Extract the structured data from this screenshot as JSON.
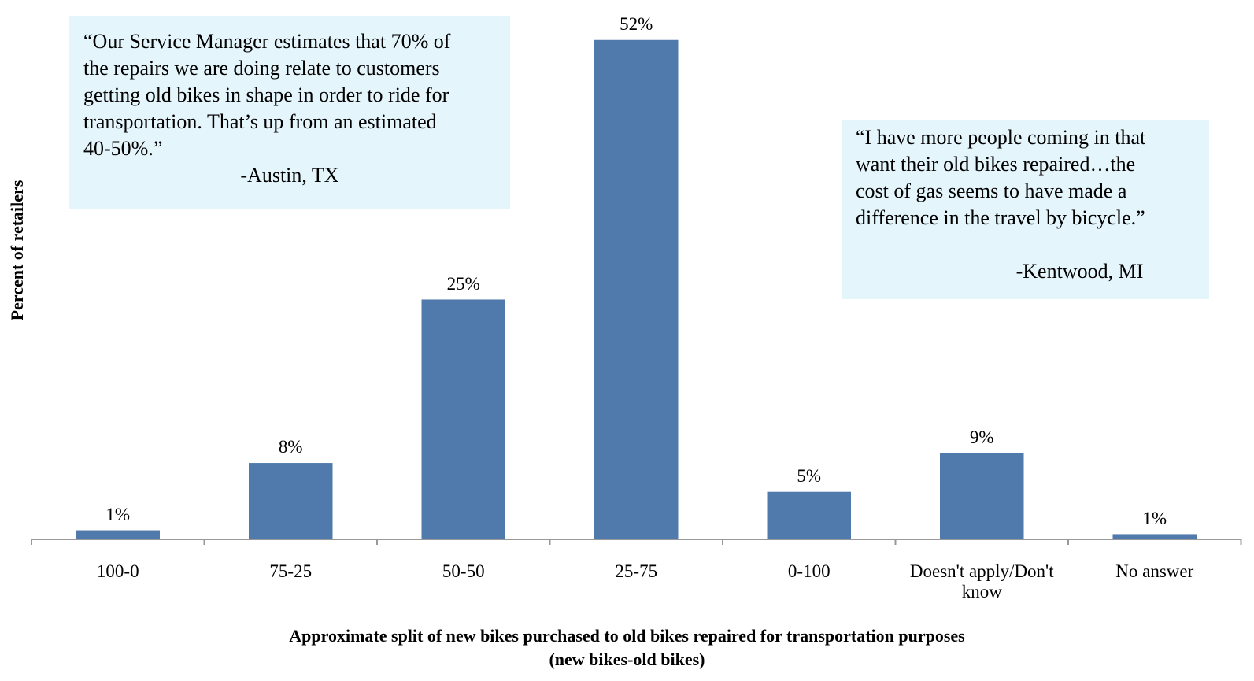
{
  "chart_data": {
    "type": "bar",
    "categories": [
      "100-0",
      "75-25",
      "50-50",
      "25-75",
      "0-100",
      "Doesn't apply/Don't know",
      "No answer"
    ],
    "values": [
      1,
      8,
      25,
      52,
      5,
      9,
      0.6
    ],
    "value_labels": [
      "1%",
      "8%",
      "25%",
      "52%",
      "5%",
      "9%",
      "1%"
    ],
    "color": "#4f7aab",
    "ylim": [
      0,
      52
    ],
    "y_label": "Percent of retailers",
    "x_label": [
      "Approximate split of new bikes purchased to old bikes repaired for transportation purposes",
      "(new bikes-old bikes)"
    ],
    "annotations": [
      {
        "lines": [
          "“Our Service Manager estimates that 70% of",
          "the repairs we are doing relate to customers",
          "getting old bikes in shape in order to ride for",
          "transportation. That’s up from an estimated",
          "40-50%.”"
        ],
        "attribution": "-Austin, TX"
      },
      {
        "lines": [
          "“I have more people coming in that",
          "want their old bikes repaired…the",
          "cost of gas seems to have made a",
          "difference in the travel by bicycle.”"
        ],
        "attribution": "-Kentwood, MI"
      }
    ]
  }
}
